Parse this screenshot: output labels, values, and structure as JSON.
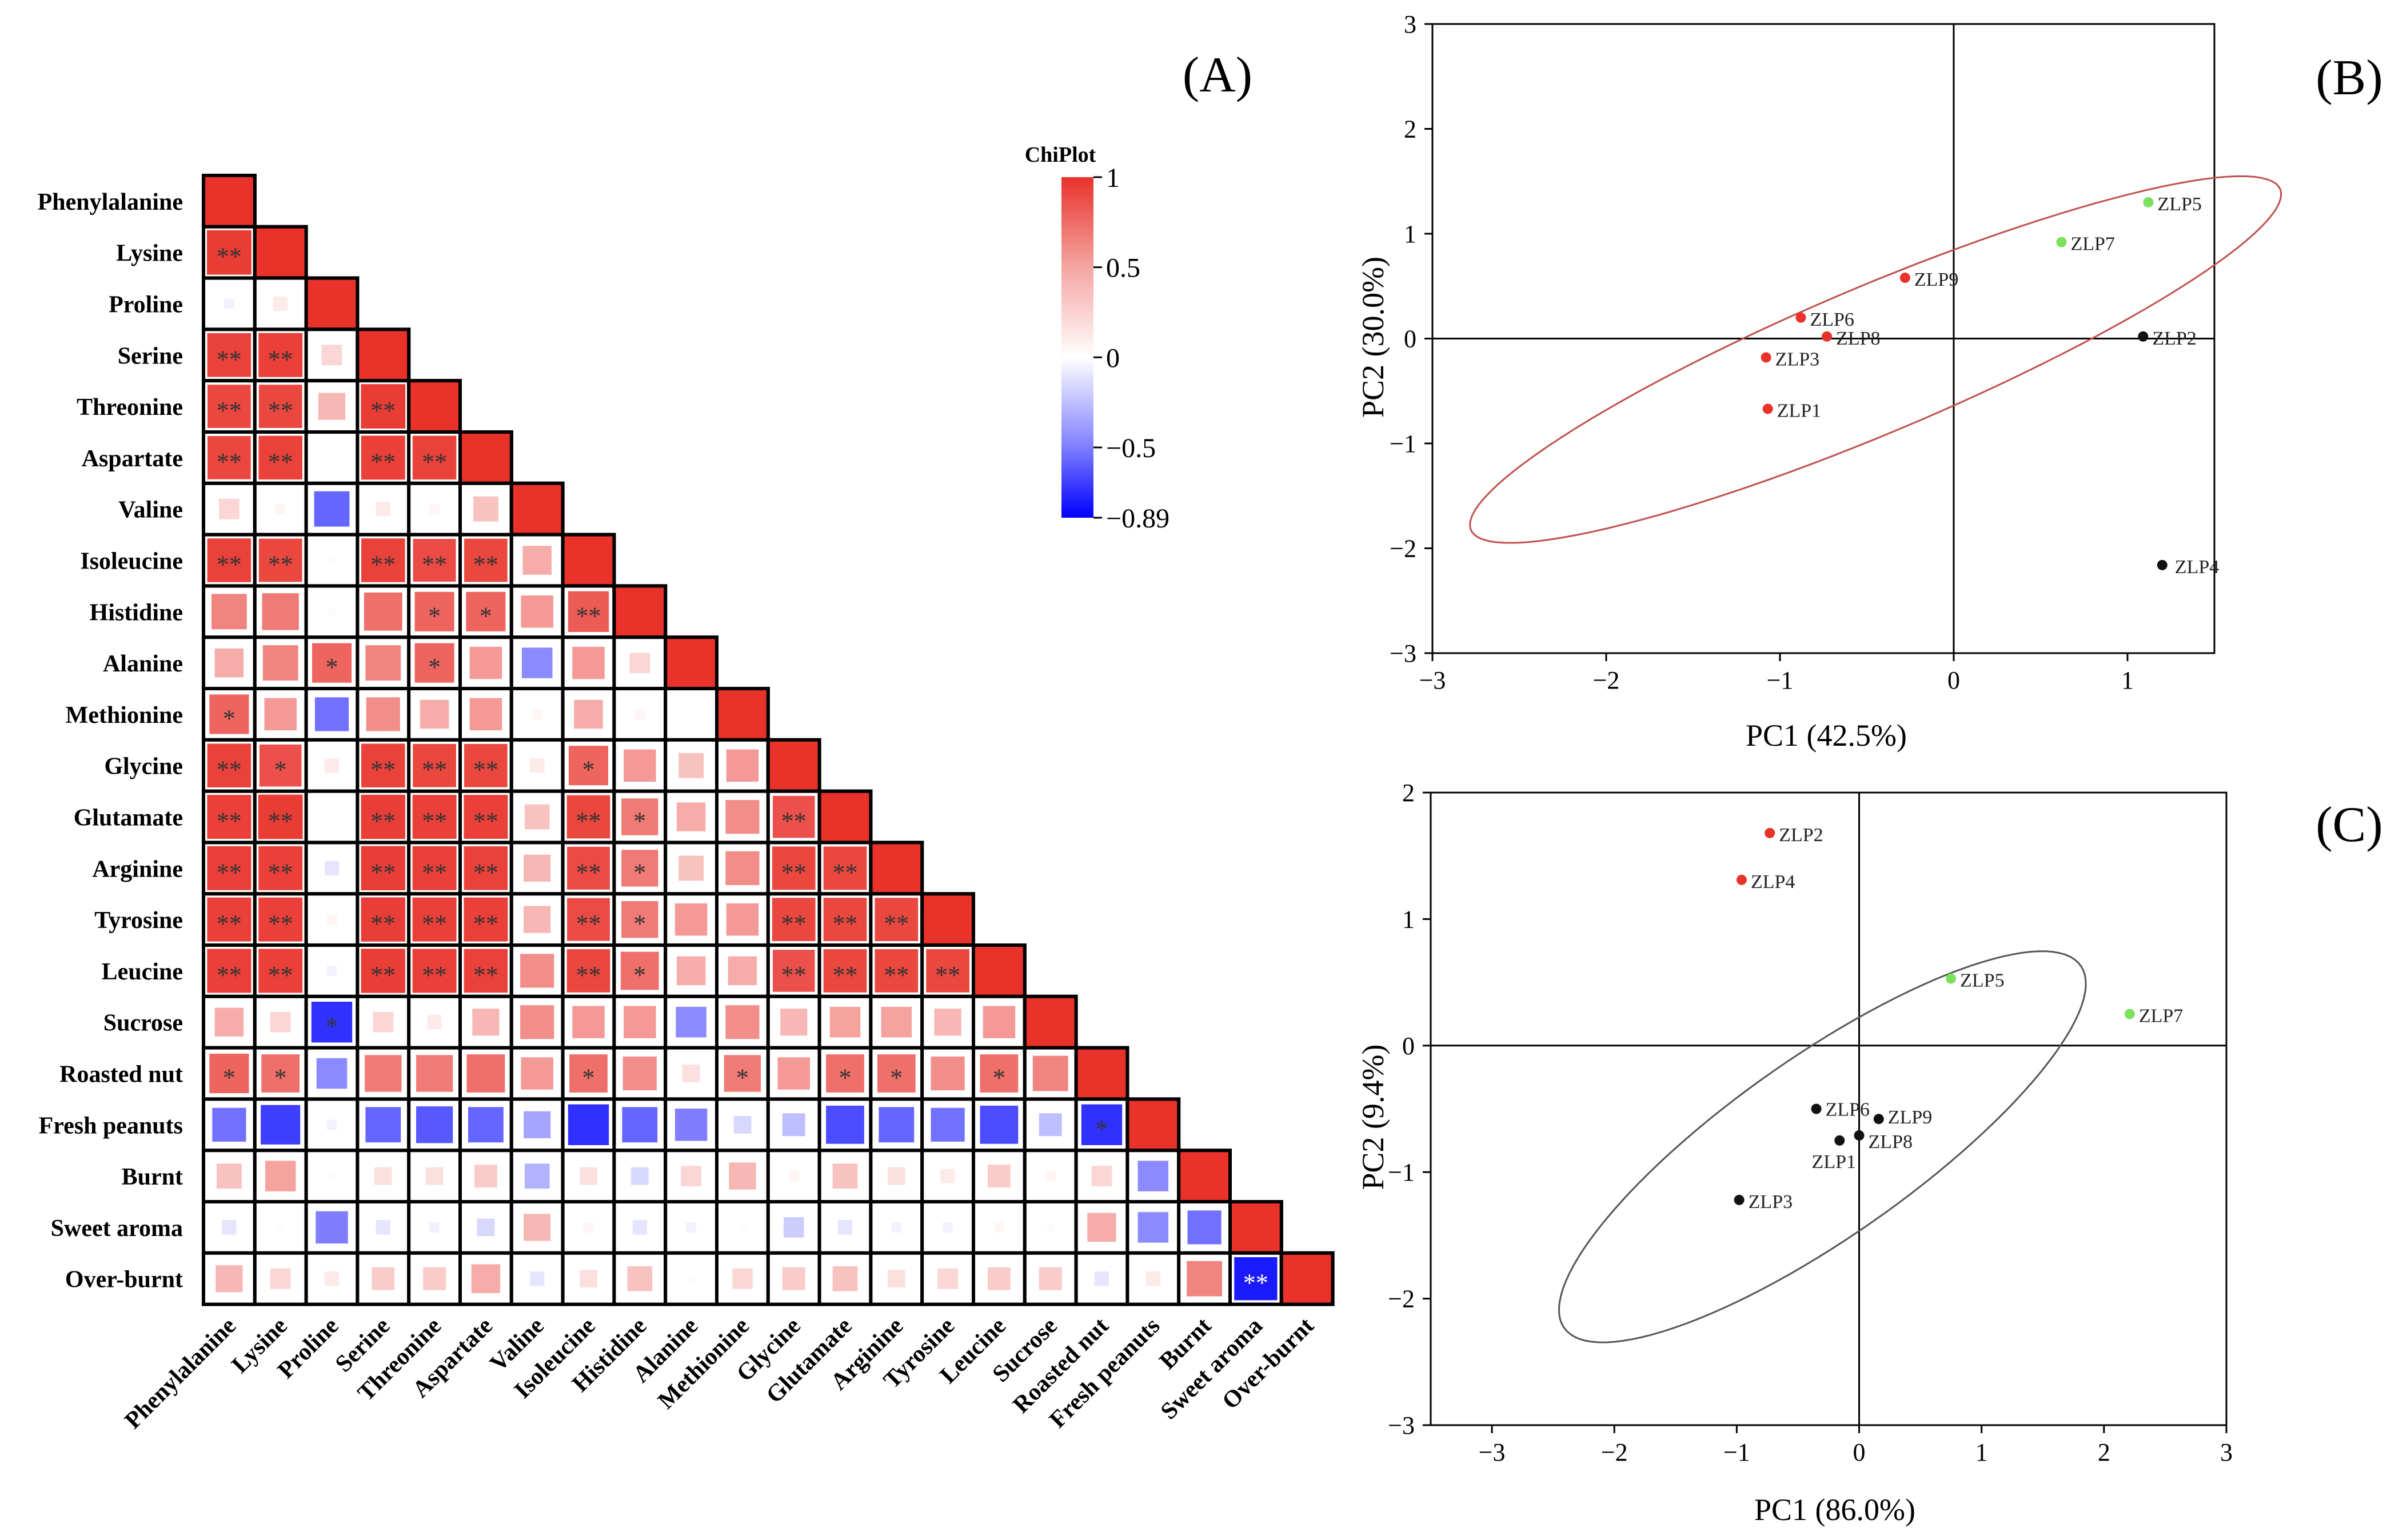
{
  "colors": {
    "positive": "#e8322a",
    "negative": "#1a1aff",
    "neutral": "#ffffff",
    "ellipse_b": "#c0504d",
    "ellipse_c": "#555555",
    "point_red": "#e8322a",
    "point_green": "#7be05a",
    "point_black": "#111111"
  },
  "chart_data": [
    {
      "type": "heatmap",
      "panel_label": "(A)",
      "legend_title": "ChiPlot",
      "scale_min": -0.89,
      "scale_max": 1,
      "scale_ticks": [
        {
          "value": 1,
          "label": "1"
        },
        {
          "value": 0.5,
          "label": "0.5"
        },
        {
          "value": 0,
          "label": "0"
        },
        {
          "value": -0.5,
          "label": "−0.5"
        },
        {
          "value": -0.89,
          "label": "−0.89"
        }
      ],
      "variables": [
        "Phenylalanine",
        "Lysine",
        "Proline",
        "Serine",
        "Threonine",
        "Aspartate",
        "Valine",
        "Isoleucine",
        "Histidine",
        "Alanine",
        "Methionine",
        "Glycine",
        "Glutamate",
        "Arginine",
        "Tyrosine",
        "Leucine",
        "Sucrose",
        "Roasted nut",
        "Fresh peanuts",
        "Burnt",
        "Sweet aroma",
        "Over-burnt"
      ],
      "rows": [
        {
          "values": [
            1
          ],
          "sig": [
            ""
          ]
        },
        {
          "values": [
            0.95,
            1
          ],
          "sig": [
            "**",
            ""
          ]
        },
        {
          "values": [
            -0.05,
            0.1,
            1
          ],
          "sig": [
            "",
            "",
            ""
          ]
        },
        {
          "values": [
            0.92,
            0.93,
            0.2,
            1
          ],
          "sig": [
            "**",
            "**",
            "",
            ""
          ]
        },
        {
          "values": [
            0.9,
            0.9,
            0.35,
            0.95,
            1
          ],
          "sig": [
            "**",
            "**",
            "",
            "**",
            ""
          ]
        },
        {
          "values": [
            0.9,
            0.92,
            0.0,
            0.93,
            0.92,
            1
          ],
          "sig": [
            "**",
            "**",
            "",
            "**",
            "**",
            ""
          ]
        },
        {
          "values": [
            0.2,
            0.05,
            -0.6,
            0.1,
            0.05,
            0.3,
            1
          ],
          "sig": [
            "",
            "",
            "",
            "",
            "",
            "",
            ""
          ]
        },
        {
          "values": [
            0.92,
            0.9,
            0.02,
            0.92,
            0.88,
            0.9,
            0.4,
            1
          ],
          "sig": [
            "**",
            "**",
            "",
            "**",
            "**",
            "**",
            "",
            ""
          ]
        },
        {
          "values": [
            0.6,
            0.65,
            0.02,
            0.7,
            0.75,
            0.75,
            0.5,
            0.8,
            1
          ],
          "sig": [
            "",
            "",
            "",
            "",
            "*",
            "*",
            "",
            "**",
            ""
          ]
        },
        {
          "values": [
            0.4,
            0.6,
            0.75,
            0.6,
            0.75,
            0.5,
            -0.45,
            0.5,
            0.2,
            1
          ],
          "sig": [
            "",
            "",
            "*",
            "",
            "*",
            "",
            "",
            "",
            "",
            ""
          ]
        },
        {
          "values": [
            0.75,
            0.5,
            -0.55,
            0.55,
            0.4,
            0.5,
            0.05,
            0.4,
            0.05,
            0.0,
            1
          ],
          "sig": [
            "*",
            "",
            "",
            "",
            "",
            "",
            "",
            "",
            "",
            "",
            ""
          ]
        },
        {
          "values": [
            0.92,
            0.85,
            0.1,
            0.92,
            0.9,
            0.9,
            0.1,
            0.75,
            0.5,
            0.3,
            0.5,
            1
          ],
          "sig": [
            "**",
            "*",
            "",
            "**",
            "**",
            "**",
            "",
            "*",
            "",
            "",
            "",
            ""
          ]
        },
        {
          "values": [
            0.93,
            0.95,
            0.0,
            0.94,
            0.93,
            0.93,
            0.3,
            0.9,
            0.65,
            0.4,
            0.55,
            0.85,
            1
          ],
          "sig": [
            "**",
            "**",
            "",
            "**",
            "**",
            "**",
            "",
            "**",
            "*",
            "",
            "",
            "**",
            ""
          ]
        },
        {
          "values": [
            0.93,
            0.93,
            -0.1,
            0.94,
            0.93,
            0.92,
            0.35,
            0.88,
            0.65,
            0.3,
            0.55,
            0.9,
            0.9,
            1
          ],
          "sig": [
            "**",
            "**",
            "",
            "**",
            "**",
            "**",
            "",
            "**",
            "*",
            "",
            "",
            "**",
            "**",
            ""
          ]
        },
        {
          "values": [
            0.93,
            0.93,
            0.05,
            0.94,
            0.93,
            0.93,
            0.35,
            0.88,
            0.65,
            0.5,
            0.5,
            0.9,
            0.9,
            0.9,
            1
          ],
          "sig": [
            "**",
            "**",
            "",
            "**",
            "**",
            "**",
            "",
            "**",
            "*",
            "",
            "",
            "**",
            "**",
            "**",
            ""
          ]
        },
        {
          "values": [
            0.93,
            0.93,
            -0.05,
            0.94,
            0.93,
            0.92,
            0.55,
            0.9,
            0.7,
            0.4,
            0.4,
            0.85,
            0.9,
            0.9,
            0.9,
            1
          ],
          "sig": [
            "**",
            "**",
            "",
            "**",
            "**",
            "**",
            "",
            "**",
            "*",
            "",
            "",
            "**",
            "**",
            "**",
            "**",
            ""
          ]
        },
        {
          "values": [
            0.4,
            0.2,
            -0.8,
            0.2,
            0.1,
            0.35,
            0.55,
            0.5,
            0.5,
            -0.45,
            0.55,
            0.35,
            0.45,
            0.45,
            0.35,
            0.5,
            1
          ],
          "sig": [
            "",
            "",
            "*",
            "",
            "",
            "",
            "",
            "",
            "",
            "",
            "",
            "",
            "",
            "",
            "",
            "",
            ""
          ]
        },
        {
          "values": [
            0.75,
            0.7,
            -0.45,
            0.65,
            0.65,
            0.7,
            0.5,
            0.7,
            0.55,
            0.15,
            0.65,
            0.5,
            0.7,
            0.7,
            0.55,
            0.7,
            0.6,
            1
          ],
          "sig": [
            "*",
            "*",
            "",
            "",
            "",
            "",
            "",
            "*",
            "",
            "",
            "*",
            "",
            "*",
            "*",
            "",
            "*",
            "",
            ""
          ]
        },
        {
          "values": [
            -0.55,
            -0.75,
            -0.05,
            -0.6,
            -0.65,
            -0.6,
            -0.35,
            -0.8,
            -0.6,
            -0.5,
            -0.15,
            -0.25,
            -0.7,
            -0.6,
            -0.55,
            -0.7,
            -0.25,
            -0.8,
            1
          ],
          "sig": [
            "",
            "",
            "",
            "",
            "",
            "",
            "",
            "",
            "",
            "",
            "",
            "",
            "",
            "",
            "",
            "",
            "",
            "*",
            ""
          ]
        },
        {
          "values": [
            0.3,
            0.45,
            -0.02,
            0.15,
            0.15,
            0.25,
            -0.3,
            0.15,
            -0.15,
            0.2,
            0.35,
            0.05,
            0.3,
            0.15,
            0.1,
            0.25,
            0.05,
            0.2,
            -0.45,
            1
          ],
          "sig": [
            "",
            "",
            "",
            "",
            "",
            "",
            "",
            "",
            "",
            "",
            "",
            "",
            "",
            "",
            "",
            "",
            "",
            "",
            "",
            ""
          ]
        },
        {
          "values": [
            -0.1,
            0.02,
            -0.5,
            -0.1,
            -0.05,
            -0.15,
            0.35,
            0.05,
            -0.1,
            -0.05,
            0.02,
            -0.2,
            -0.1,
            -0.05,
            -0.05,
            0.05,
            -0.02,
            0.4,
            -0.45,
            -0.55,
            1
          ],
          "sig": [
            "",
            "",
            "",
            "",
            "",
            "",
            "",
            "",
            "",
            "",
            "",
            "",
            "",
            "",
            "",
            "",
            "",
            "",
            "",
            "",
            ""
          ]
        },
        {
          "values": [
            0.35,
            0.2,
            0.1,
            0.25,
            0.25,
            0.4,
            -0.1,
            0.15,
            0.3,
            0.02,
            0.2,
            0.25,
            0.3,
            0.15,
            0.2,
            0.25,
            0.25,
            -0.1,
            0.1,
            0.6,
            -0.89,
            1
          ],
          "sig": [
            "",
            "",
            "",
            "",
            "",
            "",
            "",
            "",
            "",
            "",
            "",
            "",
            "",
            "",
            "",
            "",
            "",
            "",
            "",
            "",
            "**",
            ""
          ]
        }
      ]
    },
    {
      "type": "scatter",
      "panel_label": "(B)",
      "xlabel": "PC1 (42.5%)",
      "ylabel": "PC2 (30.0%)",
      "xlim": [
        -3,
        1.5
      ],
      "ylim": [
        -3,
        3
      ],
      "xticks": [
        -3,
        -2,
        -1,
        0,
        1
      ],
      "yticks": [
        -3,
        -2,
        -1,
        0,
        1,
        2,
        3
      ],
      "points": [
        {
          "label": "ZLP1",
          "x": -1.07,
          "y": -0.67,
          "color": "red"
        },
        {
          "label": "ZLP2",
          "x": 1.09,
          "y": 0.02,
          "color": "black"
        },
        {
          "label": "ZLP3",
          "x": -1.08,
          "y": -0.18,
          "color": "red"
        },
        {
          "label": "ZLP4",
          "x": 1.2,
          "y": -2.16,
          "color": "black"
        },
        {
          "label": "ZLP5",
          "x": 1.12,
          "y": 1.3,
          "color": "green"
        },
        {
          "label": "ZLP6",
          "x": -0.88,
          "y": 0.2,
          "color": "red"
        },
        {
          "label": "ZLP7",
          "x": 0.62,
          "y": 0.92,
          "color": "green"
        },
        {
          "label": "ZLP8",
          "x": -0.73,
          "y": 0.02,
          "color": "red"
        },
        {
          "label": "ZLP9",
          "x": -0.28,
          "y": 0.58,
          "color": "red"
        }
      ],
      "ellipse": {
        "cx": -0.45,
        "cy": -0.2,
        "rx": 2.85,
        "ry": 0.62,
        "angle_deg": 36
      }
    },
    {
      "type": "scatter",
      "panel_label": "(C)",
      "xlabel": "PC1 (86.0%)",
      "ylabel": "PC2 (9.4%)",
      "xlim": [
        -3.5,
        3
      ],
      "ylim": [
        -3,
        2
      ],
      "xticks": [
        -3,
        -2,
        -1,
        0,
        1,
        2,
        3
      ],
      "yticks": [
        -3,
        -2,
        -1,
        0,
        1,
        2
      ],
      "points": [
        {
          "label": "ZLP1",
          "x": -0.16,
          "y": -0.75,
          "color": "black"
        },
        {
          "label": "ZLP2",
          "x": -0.73,
          "y": 1.68,
          "color": "red"
        },
        {
          "label": "ZLP3",
          "x": -0.98,
          "y": -1.22,
          "color": "black"
        },
        {
          "label": "ZLP4",
          "x": -0.96,
          "y": 1.31,
          "color": "red"
        },
        {
          "label": "ZLP5",
          "x": 0.75,
          "y": 0.53,
          "color": "green"
        },
        {
          "label": "ZLP6",
          "x": -0.35,
          "y": -0.5,
          "color": "black"
        },
        {
          "label": "ZLP7",
          "x": 2.21,
          "y": 0.25,
          "color": "green"
        },
        {
          "label": "ZLP8",
          "x": 0.0,
          "y": -0.71,
          "color": "black"
        },
        {
          "label": "ZLP9",
          "x": 0.16,
          "y": -0.58,
          "color": "black"
        }
      ],
      "ellipse": {
        "cx": -0.3,
        "cy": -0.8,
        "rx": 2.55,
        "ry": 0.72,
        "angle_deg": 34
      }
    }
  ]
}
